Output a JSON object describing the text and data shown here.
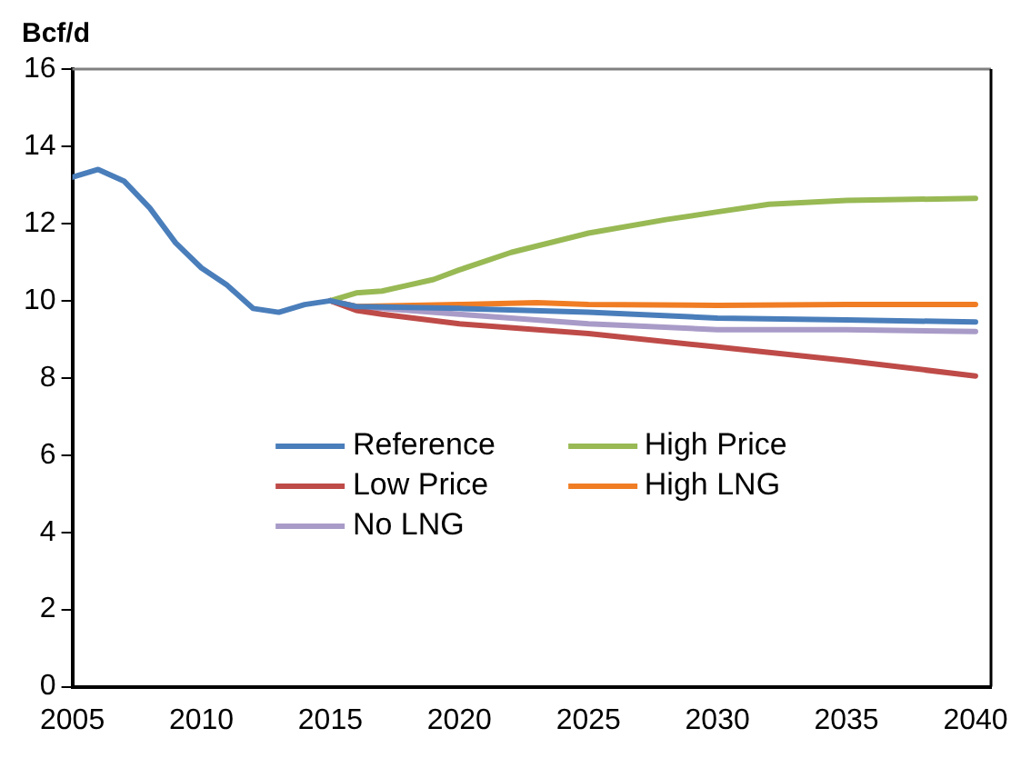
{
  "chart_data": {
    "type": "line",
    "ylabel": "Bcf/d",
    "xlim": [
      2005,
      2040.6
    ],
    "xticks": [
      2005,
      2010,
      2015,
      2020,
      2025,
      2030,
      2035,
      2040
    ],
    "ylim": [
      0,
      16
    ],
    "yticks": [
      0,
      2,
      4,
      6,
      8,
      10,
      12,
      14,
      16
    ],
    "grid": false,
    "legend": "bottom",
    "marker": "none",
    "line_style": "solid",
    "series": [
      {
        "name": "Reference",
        "color": "#4a7ebb",
        "x": [
          2005,
          2006,
          2007,
          2008,
          2009,
          2010,
          2011,
          2012,
          2013,
          2014,
          2015,
          2016,
          2020,
          2025,
          2030,
          2035,
          2040
        ],
        "values": [
          13.2,
          13.4,
          13.1,
          12.4,
          11.5,
          10.85,
          10.4,
          9.8,
          9.7,
          9.9,
          10.0,
          9.85,
          9.8,
          9.7,
          9.55,
          9.5,
          9.45
        ]
      },
      {
        "name": "High Price",
        "color": "#98b954",
        "x": [
          2015,
          2016,
          2017,
          2018,
          2019,
          2020,
          2022,
          2025,
          2028,
          2030,
          2032,
          2035,
          2040
        ],
        "values": [
          10.0,
          10.2,
          10.25,
          10.4,
          10.55,
          10.8,
          11.25,
          11.75,
          12.1,
          12.3,
          12.5,
          12.6,
          12.65
        ]
      },
      {
        "name": "Low Price",
        "color": "#be4b48",
        "x": [
          2015,
          2016,
          2017,
          2020,
          2025,
          2030,
          2035,
          2040
        ],
        "values": [
          10.0,
          9.75,
          9.65,
          9.4,
          9.15,
          8.8,
          8.45,
          8.05
        ]
      },
      {
        "name": "High LNG",
        "color": "#f07d24",
        "x": [
          2015,
          2016,
          2020,
          2023,
          2025,
          2030,
          2035,
          2040
        ],
        "values": [
          10.0,
          9.85,
          9.9,
          9.95,
          9.9,
          9.88,
          9.9,
          9.9
        ]
      },
      {
        "name": "No LNG",
        "color": "#a99bc8",
        "x": [
          2015,
          2016,
          2020,
          2025,
          2030,
          2035,
          2040
        ],
        "values": [
          10.0,
          9.85,
          9.65,
          9.4,
          9.25,
          9.25,
          9.2
        ]
      }
    ]
  }
}
